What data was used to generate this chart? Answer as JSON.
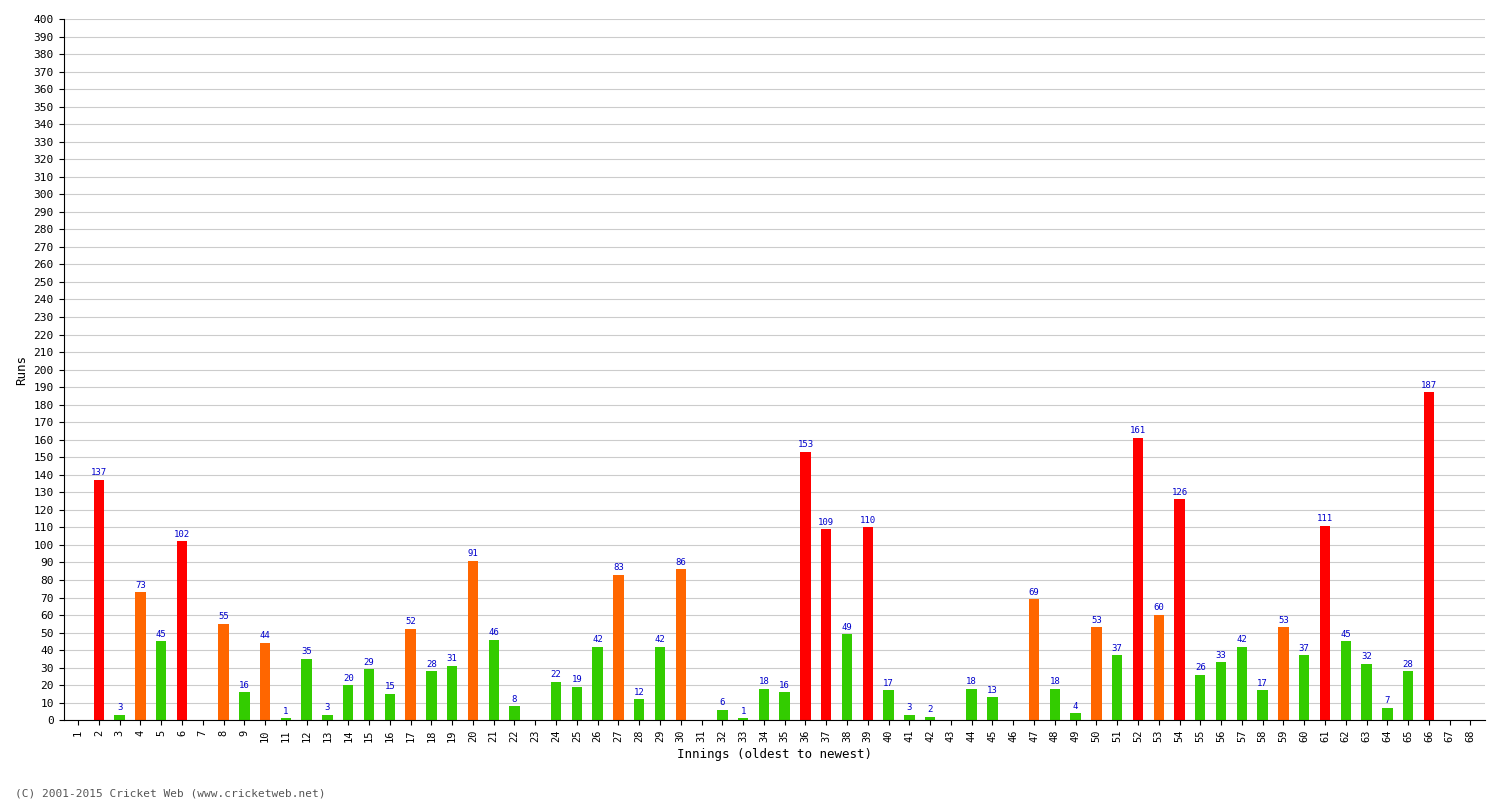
{
  "xlabel": "Innings (oldest to newest)",
  "ylabel": "Runs",
  "ylim": [
    0,
    400
  ],
  "yticks": [
    0,
    10,
    20,
    30,
    40,
    50,
    60,
    70,
    80,
    90,
    100,
    110,
    120,
    130,
    140,
    150,
    160,
    170,
    180,
    190,
    200,
    210,
    220,
    230,
    240,
    250,
    260,
    270,
    280,
    290,
    300,
    310,
    320,
    330,
    340,
    350,
    360,
    370,
    380,
    390,
    400
  ],
  "background_color": "#ffffff",
  "grid_color": "#cccccc",
  "label_color": "#0000cc",
  "innings": [
    1,
    2,
    3,
    4,
    5,
    6,
    7,
    8,
    9,
    10,
    11,
    12,
    13,
    14,
    15,
    16,
    17,
    18,
    19,
    20,
    21,
    22,
    23,
    24,
    25,
    26,
    27,
    28,
    29,
    30,
    31,
    32,
    33,
    34,
    35,
    36,
    37,
    38,
    39,
    40,
    41,
    42,
    43,
    44,
    45,
    46,
    47,
    48,
    49,
    50,
    51,
    52,
    53,
    54,
    55,
    56,
    57,
    58,
    59,
    60,
    61,
    62,
    63,
    64,
    65,
    66,
    67,
    68
  ],
  "values": [
    0,
    137,
    3,
    73,
    45,
    102,
    0,
    55,
    16,
    44,
    1,
    35,
    3,
    20,
    29,
    15,
    52,
    28,
    31,
    91,
    46,
    8,
    0,
    22,
    19,
    42,
    83,
    12,
    42,
    86,
    0,
    6,
    1,
    18,
    16,
    153,
    109,
    49,
    110,
    17,
    3,
    2,
    0,
    18,
    13,
    0,
    69,
    18,
    4,
    53,
    37,
    161,
    60,
    126,
    26,
    33,
    42,
    17,
    53,
    37,
    111,
    45,
    32,
    7,
    28,
    187,
    0,
    0
  ],
  "colors": [
    "#33cc00",
    "#ff0000",
    "#33cc00",
    "#ff6600",
    "#33cc00",
    "#ff0000",
    "#33cc00",
    "#ff6600",
    "#33cc00",
    "#ff6600",
    "#33cc00",
    "#33cc00",
    "#33cc00",
    "#33cc00",
    "#33cc00",
    "#33cc00",
    "#ff6600",
    "#33cc00",
    "#33cc00",
    "#ff6600",
    "#33cc00",
    "#33cc00",
    "#33cc00",
    "#33cc00",
    "#33cc00",
    "#33cc00",
    "#ff6600",
    "#33cc00",
    "#33cc00",
    "#ff6600",
    "#33cc00",
    "#33cc00",
    "#33cc00",
    "#33cc00",
    "#33cc00",
    "#ff0000",
    "#ff0000",
    "#33cc00",
    "#ff0000",
    "#33cc00",
    "#33cc00",
    "#33cc00",
    "#33cc00",
    "#33cc00",
    "#33cc00",
    "#33cc00",
    "#ff6600",
    "#33cc00",
    "#33cc00",
    "#ff6600",
    "#33cc00",
    "#ff0000",
    "#ff6600",
    "#ff0000",
    "#33cc00",
    "#33cc00",
    "#33cc00",
    "#33cc00",
    "#ff6600",
    "#33cc00",
    "#ff0000",
    "#33cc00",
    "#33cc00",
    "#33cc00",
    "#33cc00",
    "#ff0000",
    "#33cc00",
    "#33cc00"
  ],
  "footer": "(C) 2001-2015 Cricket Web (www.cricketweb.net)"
}
